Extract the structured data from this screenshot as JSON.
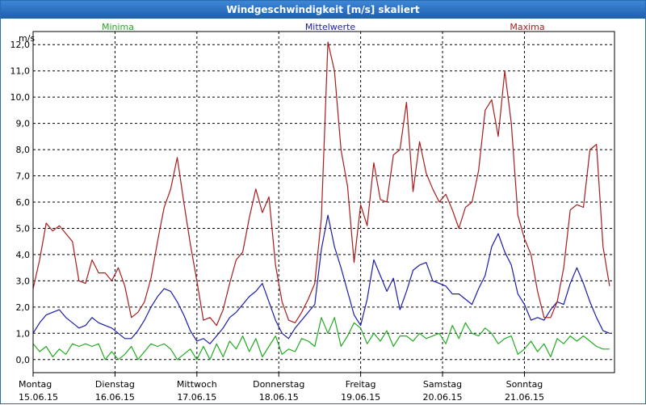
{
  "title": "Windgeschwindigkeit [m/s] skaliert",
  "chart_data": {
    "type": "line",
    "title": "Windgeschwindigkeit [m/s] skaliert",
    "ylabel": "m/s",
    "ylim": [
      -0.5,
      12.5
    ],
    "yticks": [
      "0,0",
      "1,0",
      "2,0",
      "3,0",
      "4,0",
      "5,0",
      "6,0",
      "7,0",
      "8,0",
      "9,0",
      "10,0",
      "11,0",
      "12,0"
    ],
    "xlim": [
      0,
      7.1
    ],
    "day_labels": [
      {
        "day": "Montag",
        "date": "15.06.15"
      },
      {
        "day": "Dienstag",
        "date": "16.06.15"
      },
      {
        "day": "Mittwoch",
        "date": "17.06.15"
      },
      {
        "day": "Donnerstag",
        "date": "18.06.15"
      },
      {
        "day": "Freitag",
        "date": "19.06.15"
      },
      {
        "day": "Samstag",
        "date": "20.06.15"
      },
      {
        "day": "Sonntag",
        "date": "21.06.15"
      }
    ],
    "grid": true,
    "legend_position": "top",
    "series": [
      {
        "name": "Minima",
        "color": "#22aa22",
        "x": [
          0.0,
          0.08,
          0.16,
          0.24,
          0.32,
          0.4,
          0.48,
          0.56,
          0.64,
          0.72,
          0.8,
          0.88,
          0.96,
          1.04,
          1.12,
          1.2,
          1.28,
          1.36,
          1.44,
          1.52,
          1.6,
          1.68,
          1.76,
          1.84,
          1.92,
          2.0,
          2.08,
          2.16,
          2.24,
          2.32,
          2.4,
          2.48,
          2.56,
          2.64,
          2.72,
          2.8,
          2.88,
          2.96,
          3.04,
          3.12,
          3.2,
          3.28,
          3.36,
          3.44,
          3.52,
          3.6,
          3.68,
          3.76,
          3.84,
          3.92,
          4.0,
          4.08,
          4.16,
          4.24,
          4.32,
          4.4,
          4.48,
          4.56,
          4.64,
          4.72,
          4.8,
          4.88,
          4.96,
          5.04,
          5.12,
          5.2,
          5.28,
          5.36,
          5.44,
          5.52,
          5.6,
          5.68,
          5.76,
          5.84,
          5.92,
          6.0,
          6.08,
          6.16,
          6.24,
          6.32,
          6.4,
          6.48,
          6.56,
          6.64,
          6.72,
          6.8,
          6.88,
          6.96,
          7.04
        ],
        "values": [
          0.6,
          0.3,
          0.5,
          0.1,
          0.4,
          0.2,
          0.6,
          0.5,
          0.6,
          0.5,
          0.6,
          0.0,
          0.3,
          0.0,
          0.2,
          0.5,
          0.0,
          0.3,
          0.6,
          0.5,
          0.6,
          0.4,
          0.0,
          0.2,
          0.4,
          0.0,
          0.5,
          0.0,
          0.6,
          0.1,
          0.7,
          0.4,
          0.9,
          0.3,
          0.8,
          0.1,
          0.5,
          0.9,
          0.2,
          0.4,
          0.3,
          0.8,
          0.7,
          0.5,
          1.6,
          1.0,
          1.6,
          0.5,
          0.9,
          1.4,
          1.2,
          0.6,
          1.0,
          0.7,
          1.1,
          0.5,
          0.9,
          0.9,
          0.7,
          1.0,
          0.8,
          0.9,
          1.0,
          0.6,
          1.3,
          0.8,
          1.4,
          1.0,
          0.9,
          1.2,
          1.0,
          0.6,
          0.8,
          0.9,
          0.2,
          0.4,
          0.7,
          0.3,
          0.6,
          0.1,
          0.8,
          0.6,
          0.9,
          0.7,
          0.9,
          0.7,
          0.5,
          0.4,
          0.4
        ]
      },
      {
        "name": "Mittelwerte",
        "color": "#1c1ca8",
        "x": [
          0.0,
          0.08,
          0.16,
          0.24,
          0.32,
          0.4,
          0.48,
          0.56,
          0.64,
          0.72,
          0.8,
          0.88,
          0.96,
          1.04,
          1.12,
          1.2,
          1.28,
          1.36,
          1.44,
          1.52,
          1.6,
          1.68,
          1.76,
          1.84,
          1.92,
          2.0,
          2.08,
          2.16,
          2.24,
          2.32,
          2.4,
          2.48,
          2.56,
          2.64,
          2.72,
          2.8,
          2.88,
          2.96,
          3.04,
          3.12,
          3.2,
          3.28,
          3.36,
          3.44,
          3.52,
          3.6,
          3.68,
          3.76,
          3.84,
          3.92,
          4.0,
          4.08,
          4.16,
          4.24,
          4.32,
          4.4,
          4.48,
          4.56,
          4.64,
          4.72,
          4.8,
          4.88,
          4.96,
          5.04,
          5.12,
          5.2,
          5.28,
          5.36,
          5.44,
          5.52,
          5.6,
          5.68,
          5.76,
          5.84,
          5.92,
          6.0,
          6.08,
          6.16,
          6.24,
          6.32,
          6.4,
          6.48,
          6.56,
          6.64,
          6.72,
          6.8,
          6.88,
          6.96,
          7.04
        ],
        "values": [
          1.0,
          1.4,
          1.7,
          1.8,
          1.9,
          1.6,
          1.4,
          1.2,
          1.3,
          1.6,
          1.4,
          1.3,
          1.2,
          1.0,
          0.8,
          0.8,
          1.1,
          1.5,
          2.0,
          2.4,
          2.7,
          2.6,
          2.2,
          1.7,
          1.1,
          0.7,
          0.8,
          0.6,
          0.9,
          1.2,
          1.6,
          1.8,
          2.1,
          2.4,
          2.6,
          2.9,
          2.2,
          1.5,
          1.0,
          0.8,
          1.2,
          1.5,
          1.8,
          2.1,
          4.2,
          5.5,
          4.3,
          3.5,
          2.6,
          1.7,
          1.3,
          2.3,
          3.8,
          3.2,
          2.6,
          3.1,
          1.9,
          2.6,
          3.4,
          3.6,
          3.7,
          3.0,
          2.9,
          2.8,
          2.5,
          2.5,
          2.3,
          2.1,
          2.7,
          3.2,
          4.3,
          4.8,
          4.1,
          3.6,
          2.5,
          2.1,
          1.5,
          1.6,
          1.5,
          1.9,
          2.2,
          2.1,
          2.9,
          3.5,
          2.9,
          2.2,
          1.6,
          1.1,
          1.0
        ]
      },
      {
        "name": "Maxima",
        "color": "#a81c1c",
        "x": [
          0.0,
          0.08,
          0.16,
          0.24,
          0.32,
          0.4,
          0.48,
          0.56,
          0.64,
          0.72,
          0.8,
          0.88,
          0.96,
          1.04,
          1.12,
          1.2,
          1.28,
          1.36,
          1.44,
          1.52,
          1.6,
          1.68,
          1.76,
          1.84,
          1.92,
          2.0,
          2.08,
          2.16,
          2.24,
          2.32,
          2.4,
          2.48,
          2.56,
          2.64,
          2.72,
          2.8,
          2.88,
          2.96,
          3.04,
          3.12,
          3.2,
          3.28,
          3.36,
          3.44,
          3.52,
          3.6,
          3.68,
          3.76,
          3.84,
          3.92,
          4.0,
          4.08,
          4.16,
          4.24,
          4.32,
          4.4,
          4.48,
          4.56,
          4.64,
          4.72,
          4.8,
          4.88,
          4.96,
          5.04,
          5.12,
          5.2,
          5.28,
          5.36,
          5.44,
          5.52,
          5.6,
          5.68,
          5.76,
          5.84,
          5.92,
          6.0,
          6.08,
          6.16,
          6.24,
          6.32,
          6.4,
          6.48,
          6.56,
          6.64,
          6.72,
          6.8,
          6.88,
          6.96,
          7.04
        ],
        "values": [
          2.7,
          3.8,
          5.2,
          4.9,
          5.1,
          4.8,
          4.5,
          3.0,
          2.9,
          3.8,
          3.3,
          3.3,
          3.0,
          3.5,
          2.8,
          1.6,
          1.8,
          2.2,
          3.1,
          4.5,
          5.8,
          6.5,
          7.7,
          6.0,
          4.4,
          3.0,
          1.5,
          1.6,
          1.3,
          1.9,
          2.9,
          3.8,
          4.1,
          5.4,
          6.5,
          5.6,
          6.2,
          3.6,
          2.2,
          1.5,
          1.4,
          1.8,
          2.3,
          2.9,
          5.4,
          12.1,
          11.0,
          8.0,
          6.6,
          3.7,
          5.9,
          5.1,
          7.5,
          6.1,
          6.0,
          7.8,
          8.0,
          9.8,
          6.4,
          8.3,
          7.1,
          6.5,
          6.0,
          6.3,
          5.7,
          5.0,
          5.8,
          6.0,
          7.2,
          9.5,
          9.9,
          8.5,
          11.0,
          9.0,
          5.5,
          4.6,
          4.0,
          2.6,
          1.6,
          1.6,
          2.2,
          3.5,
          5.7,
          5.9,
          5.8,
          8.0,
          8.2,
          4.3,
          2.8
        ]
      }
    ]
  }
}
